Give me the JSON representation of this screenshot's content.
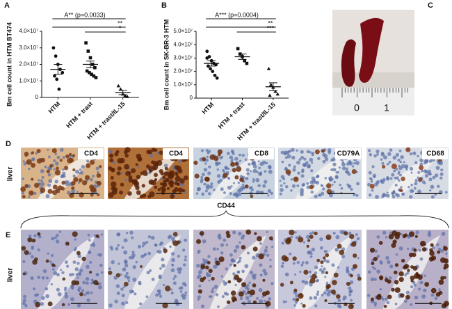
{
  "panel_labels": [
    "A",
    "B",
    "C",
    "D",
    "E"
  ],
  "chart_data": [
    {
      "type": "dotplot",
      "ylabel": "Bm cell count in HTM BT474",
      "categories": [
        "HTM",
        "HTM + trast",
        "HTM + trast/IL-15"
      ],
      "values": [
        [
          30000000,
          25000000,
          20000000,
          17000000,
          15000000,
          13000000,
          11000000,
          5000000
        ],
        [
          33000000,
          28000000,
          24000000,
          20000000,
          18000000,
          16000000,
          15000000,
          14000000,
          13000000,
          12000000
        ],
        [
          7000000,
          5000000,
          2000000,
          1000000,
          500000
        ]
      ],
      "mean": [
        17000000,
        20000000,
        3000000
      ],
      "sem": [
        3000000,
        2000000,
        1300000
      ],
      "markers": [
        "circle",
        "square",
        "triangle"
      ],
      "color": "#111111",
      "ylim": [
        0,
        40000000
      ],
      "yticks": [
        0,
        {
          "value": 10000000,
          "label": "1.0×10⁷"
        },
        {
          "value": 20000000,
          "label": "2.0×10⁷"
        },
        {
          "value": 30000000,
          "label": "3.0×10⁷"
        },
        {
          "value": 40000000,
          "label": "4.0×10⁷"
        }
      ],
      "annotations": [
        "A** (p=0.0033)",
        "**",
        "*"
      ]
    },
    {
      "type": "dotplot",
      "ylabel": "Bm cell count in SK-BR-3 HTM",
      "categories": [
        "HTM",
        "HTM + trast",
        "HTM + trast/IL-15"
      ],
      "values": [
        [
          35000000,
          31000000,
          28000000,
          26000000,
          25000000,
          24000000,
          22000000,
          20000000,
          17000000,
          15000000,
          30000000
        ],
        [
          37000000,
          33000000,
          31000000,
          28000000,
          26000000
        ],
        [
          22000000,
          10000000,
          8000000,
          5000000,
          3000000,
          2000000
        ]
      ],
      "mean": [
        26000000,
        31000000,
        8500000
      ],
      "sem": [
        2000000,
        2000000,
        3000000
      ],
      "markers": [
        "circle",
        "square",
        "triangle"
      ],
      "color": "#111111",
      "ylim": [
        0,
        50000000
      ],
      "yticks": [
        0,
        {
          "value": 10000000,
          "label": "1.0×10⁷"
        },
        {
          "value": 20000000,
          "label": "2.0×10⁷"
        },
        {
          "value": 30000000,
          "label": "3.0×10⁷"
        },
        {
          "value": 40000000,
          "label": "4.0×10⁷"
        },
        {
          "value": 50000000,
          "label": "5.0×10⁷"
        }
      ],
      "annotations": [
        "A*** (p=0.0004)",
        "**",
        "***"
      ]
    }
  ],
  "photo": {
    "ruler_labels": [
      "0",
      "1"
    ]
  },
  "row_d": {
    "row_label": "liver",
    "stains": [
      "CD4",
      "CD4",
      "CD8",
      "CD79A",
      "CD68"
    ]
  },
  "row_e": {
    "row_label": "liver",
    "stain": "CD44"
  }
}
